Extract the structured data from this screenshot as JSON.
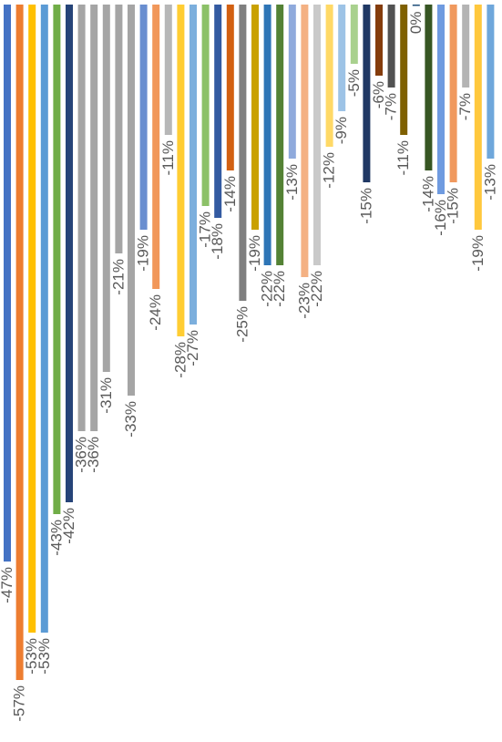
{
  "chart_data": {
    "type": "bar",
    "orientation": "vertical",
    "axis_max": 0,
    "axis_min": -60,
    "grid": false,
    "legend": "none",
    "categories": [],
    "bars": [
      {
        "value": -47,
        "label": "-47%",
        "color": "#4472C4"
      },
      {
        "value": -57,
        "label": "-57%",
        "color": "#ED7D31"
      },
      {
        "value": -53,
        "label": "-53%",
        "color": "#FFC000"
      },
      {
        "value": -53,
        "label": "-53%",
        "color": "#5B9BD5"
      },
      {
        "value": -43,
        "label": "-43%",
        "color": "#70AD47"
      },
      {
        "value": -42,
        "label": "-42%",
        "color": "#264478"
      },
      {
        "value": -36,
        "label": "-36%",
        "color": "#A5A5A5"
      },
      {
        "value": -36,
        "label": "-36%",
        "color": "#A5A5A5"
      },
      {
        "value": -31,
        "label": "-31%",
        "color": "#A5A5A5"
      },
      {
        "value": -21,
        "label": "-21%",
        "color": "#A5A5A5"
      },
      {
        "value": -33,
        "label": "-33%",
        "color": "#A5A5A5"
      },
      {
        "value": -19,
        "label": "-19%",
        "color": "#698ED0"
      },
      {
        "value": -24,
        "label": "-24%",
        "color": "#F1975A"
      },
      {
        "value": -11,
        "label": "-11%",
        "color": "#B7B7B7"
      },
      {
        "value": -28,
        "label": "-28%",
        "color": "#FFCD33"
      },
      {
        "value": -27,
        "label": "-27%",
        "color": "#7CAFDD"
      },
      {
        "value": -17,
        "label": "-17%",
        "color": "#8CC168"
      },
      {
        "value": -18,
        "label": "-18%",
        "color": "#335AA1"
      },
      {
        "value": -14,
        "label": "-14%",
        "color": "#D26012"
      },
      {
        "value": -25,
        "label": "-25%",
        "color": "#7F7F7F"
      },
      {
        "value": -19,
        "label": "-19%",
        "color": "#C9A100"
      },
      {
        "value": -22,
        "label": "-22%",
        "color": "#2E75B6"
      },
      {
        "value": -22,
        "label": "-22%",
        "color": "#548235"
      },
      {
        "value": -13,
        "label": "-13%",
        "color": "#8FAADC"
      },
      {
        "value": -23,
        "label": "-23%",
        "color": "#F4B183"
      },
      {
        "value": -22,
        "label": "-22%",
        "color": "#C9C9C9"
      },
      {
        "value": -12,
        "label": "-12%",
        "color": "#FFD966"
      },
      {
        "value": -9,
        "label": "-9%",
        "color": "#9DC3E6"
      },
      {
        "value": -5,
        "label": "-5%",
        "color": "#A9D18E"
      },
      {
        "value": -15,
        "label": "-15%",
        "color": "#203864"
      },
      {
        "value": -6,
        "label": "-6%",
        "color": "#843C0C"
      },
      {
        "value": -7,
        "label": "-7%",
        "color": "#525252"
      },
      {
        "value": -11,
        "label": "-11%",
        "color": "#7F6000"
      },
      {
        "value": 0,
        "label": "0%",
        "color": "#1F4E79"
      },
      {
        "value": -14,
        "label": "-14%",
        "color": "#375623"
      },
      {
        "value": -16,
        "label": "-16%",
        "color": "#6F9BE0"
      },
      {
        "value": -15,
        "label": "-15%",
        "color": "#F0995E"
      },
      {
        "value": -7,
        "label": "-7%",
        "color": "#B4B4B4"
      },
      {
        "value": -19,
        "label": "-19%",
        "color": "#FFC83D"
      },
      {
        "value": -13,
        "label": "-13%",
        "color": "#6FA7DB"
      }
    ]
  }
}
